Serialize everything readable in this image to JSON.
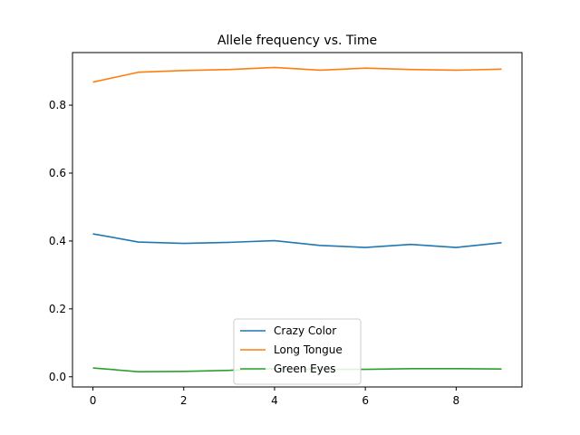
{
  "chart_data": {
    "type": "line",
    "title": "Allele frequency vs. Time",
    "xlabel": "",
    "ylabel": "",
    "x": [
      0,
      1,
      2,
      3,
      4,
      5,
      6,
      7,
      8,
      9
    ],
    "xlim": [
      -0.45,
      9.45
    ],
    "ylim": [
      -0.03,
      0.955
    ],
    "xticks": [
      "0",
      "2",
      "4",
      "6",
      "8"
    ],
    "yticks": [
      "0.0",
      "0.2",
      "0.4",
      "0.6",
      "0.8"
    ],
    "grid": false,
    "legend_position": "bottom-center",
    "series": [
      {
        "name": "Crazy Color",
        "color": "#1f77b4",
        "values": [
          0.421,
          0.397,
          0.393,
          0.396,
          0.401,
          0.387,
          0.381,
          0.39,
          0.381,
          0.395
        ]
      },
      {
        "name": "Long Tongue",
        "color": "#ff7f0e",
        "values": [
          0.868,
          0.897,
          0.902,
          0.905,
          0.911,
          0.903,
          0.909,
          0.905,
          0.903,
          0.906
        ]
      },
      {
        "name": "Green Eyes",
        "color": "#2ca02c",
        "values": [
          0.026,
          0.015,
          0.016,
          0.019,
          0.024,
          0.022,
          0.022,
          0.024,
          0.024,
          0.023
        ]
      }
    ]
  }
}
